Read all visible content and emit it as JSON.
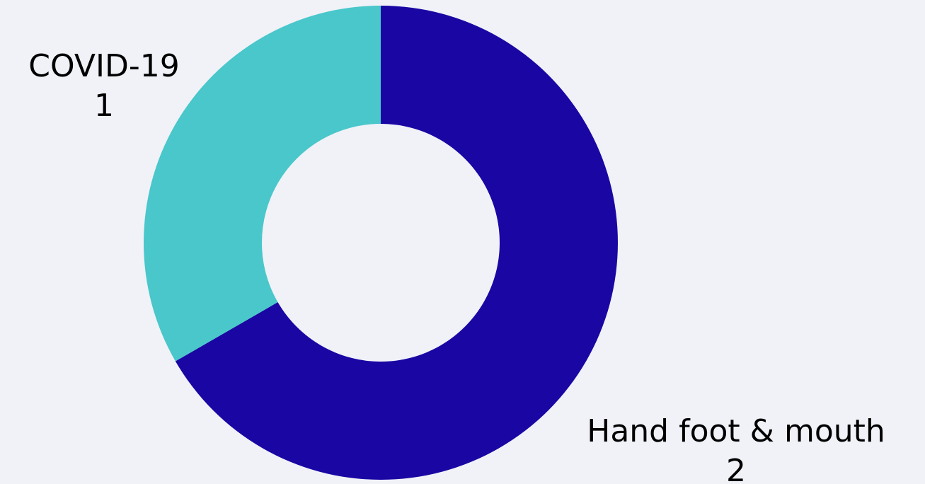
{
  "chart_data": {
    "type": "pie",
    "variant": "donut",
    "title": "",
    "categories": [
      "Hand foot & mouth",
      "COVID-19"
    ],
    "values": [
      2,
      1
    ],
    "colors": [
      "#1a06a3",
      "#49c7ca"
    ],
    "labels": [
      {
        "name": "Hand foot & mouth",
        "value": "2"
      },
      {
        "name": "COVID-19",
        "value": "1"
      }
    ],
    "legend": "none",
    "background": "#f0f2f8"
  }
}
